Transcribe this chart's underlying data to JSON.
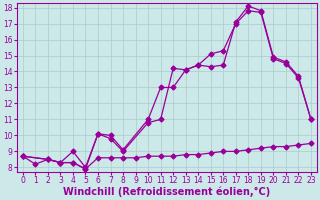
{
  "xlabel": "Windchill (Refroidissement éolien,°C)",
  "background_color": "#cce8e8",
  "grid_color": "#aacccc",
  "line_color": "#990099",
  "xlim": [
    -0.5,
    23.5
  ],
  "ylim": [
    7.7,
    18.3
  ],
  "xticks": [
    0,
    1,
    2,
    3,
    4,
    5,
    6,
    7,
    8,
    9,
    10,
    11,
    12,
    13,
    14,
    15,
    16,
    17,
    18,
    19,
    20,
    21,
    22,
    23
  ],
  "yticks": [
    8,
    9,
    10,
    11,
    12,
    13,
    14,
    15,
    16,
    17,
    18
  ],
  "line1_x": [
    0,
    1,
    2,
    3,
    4,
    5,
    6,
    7,
    8,
    9,
    10,
    11,
    12,
    13,
    14,
    15,
    16,
    17,
    18,
    19,
    20,
    21,
    22,
    23
  ],
  "line1_y": [
    8.7,
    8.2,
    8.5,
    8.3,
    8.3,
    7.9,
    8.6,
    8.6,
    8.6,
    8.6,
    8.7,
    8.7,
    8.7,
    8.8,
    8.8,
    8.9,
    9.0,
    9.0,
    9.1,
    9.2,
    9.3,
    9.3,
    9.4,
    9.5
  ],
  "line2_x": [
    0,
    2,
    3,
    4,
    5,
    6,
    7,
    8,
    10,
    11,
    12,
    13,
    14,
    15,
    16,
    17,
    18,
    19,
    20,
    21,
    22,
    23
  ],
  "line2_y": [
    8.7,
    8.5,
    8.3,
    8.3,
    7.9,
    10.1,
    9.8,
    9.0,
    10.8,
    11.0,
    14.2,
    14.1,
    14.4,
    15.1,
    15.3,
    17.0,
    17.8,
    17.7,
    14.8,
    14.5,
    13.6,
    11.0
  ],
  "line3_x": [
    0,
    2,
    3,
    4,
    5,
    6,
    7,
    8,
    10,
    11,
    12,
    13,
    14,
    15,
    16,
    17,
    18,
    19,
    20,
    21,
    22,
    23
  ],
  "line3_y": [
    8.7,
    8.5,
    8.3,
    9.0,
    8.0,
    10.1,
    10.0,
    9.1,
    11.0,
    13.0,
    13.0,
    14.1,
    14.4,
    14.3,
    14.4,
    17.1,
    18.1,
    17.8,
    14.9,
    14.6,
    13.7,
    11.0
  ],
  "tick_fontsize": 5.5,
  "xlabel_fontsize": 7.0
}
